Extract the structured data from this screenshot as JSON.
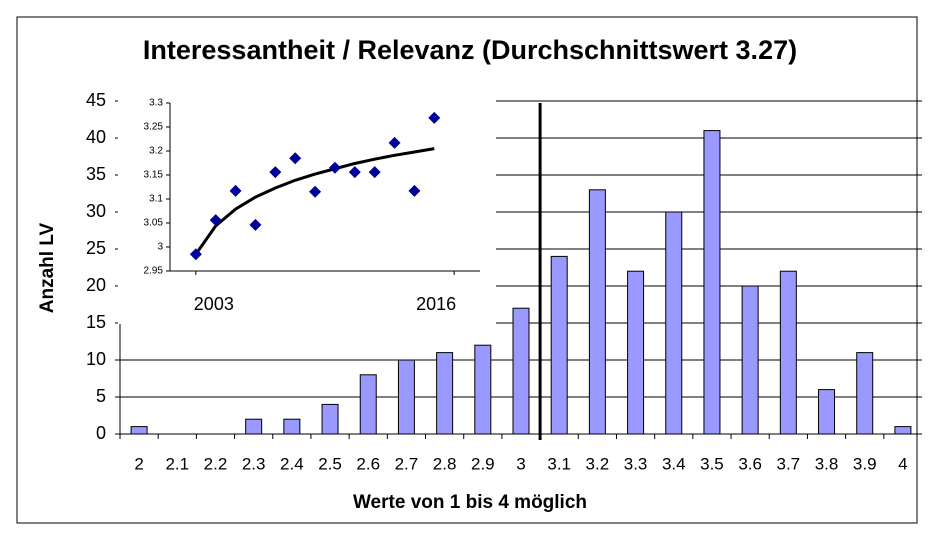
{
  "chart_data": [
    {
      "type": "bar",
      "title": "Interessantheit / Relevanz (Durchschnittswert 3.27)",
      "x_label": "Werte von 1 bis 4 möglich",
      "y_label": "Anzahl LV",
      "categories": [
        "2",
        "2.1",
        "2.2",
        "2.3",
        "2.4",
        "2.5",
        "2.6",
        "2.7",
        "2.8",
        "2.9",
        "3",
        "3.1",
        "3.2",
        "3.3",
        "3.4",
        "3.5",
        "3.6",
        "3.7",
        "3.8",
        "3.9",
        "4"
      ],
      "values": [
        1,
        0,
        0,
        2,
        2,
        4,
        8,
        10,
        11,
        12,
        17,
        24,
        33,
        22,
        30,
        41,
        20,
        22,
        6,
        11,
        1
      ],
      "color": "#9999ff",
      "ylim": [
        0,
        45
      ],
      "yticks": [
        0,
        5,
        10,
        15,
        20,
        25,
        30,
        35,
        40,
        45
      ],
      "grid": true,
      "reference_line_x": 3.05
    },
    {
      "type": "scatter",
      "x": [
        2003,
        2004,
        2005,
        2006,
        2007,
        2008,
        2009,
        2010,
        2011,
        2012,
        2013,
        2014,
        2015
      ],
      "values": [
        2.985,
        3.056,
        3.117,
        3.046,
        3.156,
        3.185,
        3.115,
        3.165,
        3.156,
        3.156,
        3.217,
        3.117,
        3.269
      ],
      "trend": [
        2.985,
        3.044,
        3.079,
        3.104,
        3.123,
        3.139,
        3.152,
        3.163,
        3.174,
        3.183,
        3.191,
        3.198,
        3.205
      ],
      "color": "#000099",
      "xlim": [
        2001.7,
        2017.3
      ],
      "xticks": [
        2003,
        2016
      ],
      "ylim": [
        2.95,
        3.3
      ],
      "yticks": [
        2.95,
        3,
        3.05,
        3.1,
        3.15,
        3.2,
        3.25,
        3.3
      ]
    }
  ]
}
